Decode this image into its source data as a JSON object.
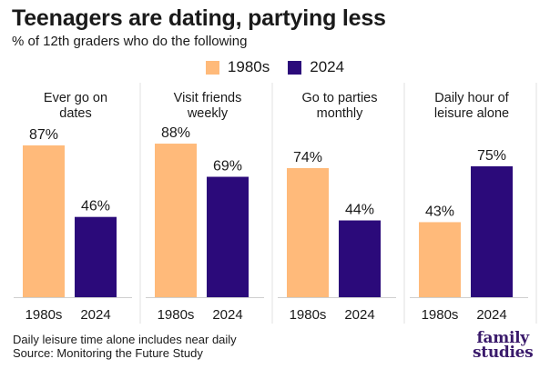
{
  "header": {
    "title": "Teenagers are dating, partying less",
    "subtitle": "% of 12th graders who do the following"
  },
  "colors": {
    "1980s": "#FFBA7A",
    "2024": "#2B0A7A"
  },
  "chart_data": {
    "type": "bar",
    "series_names": [
      "1980s",
      "2024"
    ],
    "panels": [
      {
        "title": [
          "Ever go on",
          "dates"
        ],
        "categories": [
          "1980s",
          "2024"
        ],
        "values": [
          87,
          46
        ],
        "labels": [
          "87%",
          "46%"
        ]
      },
      {
        "title": [
          "Visit friends",
          "weekly"
        ],
        "categories": [
          "1980s",
          "2024"
        ],
        "values": [
          88,
          69
        ],
        "labels": [
          "88%",
          "69%"
        ]
      },
      {
        "title": [
          "Go to parties",
          "monthly"
        ],
        "categories": [
          "1980s",
          "2024"
        ],
        "values": [
          74,
          44
        ],
        "labels": [
          "74%",
          "44%"
        ]
      },
      {
        "title": [
          "Daily hour of",
          "leisure alone"
        ],
        "categories": [
          "1980s",
          "2024"
        ],
        "values": [
          43,
          75
        ],
        "labels": [
          "43%",
          "75%"
        ]
      }
    ],
    "ylim": [
      0,
      100
    ],
    "grid": false,
    "legend": "top-center"
  },
  "footnote": {
    "line1": "Daily leisure time alone includes near daily",
    "line2": "Source: Monitoring the Future Study"
  },
  "logo": {
    "line1": "family",
    "line2": "studies"
  }
}
